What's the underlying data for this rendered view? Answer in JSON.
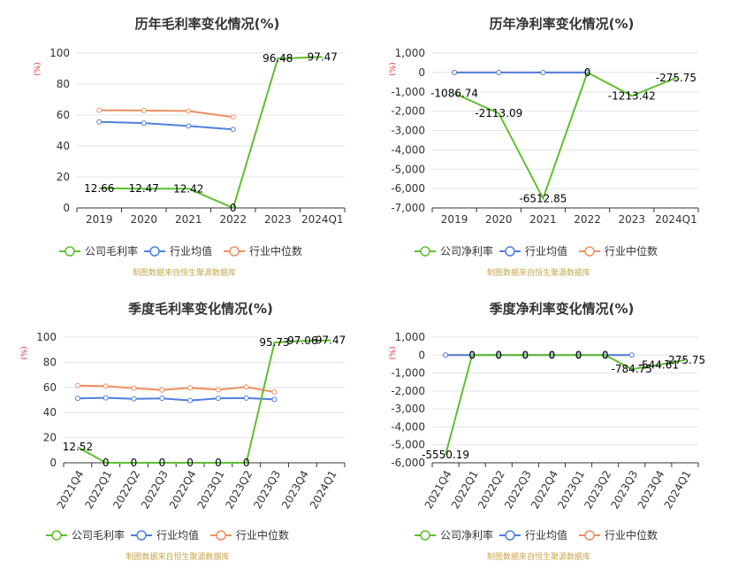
{
  "colors": {
    "company": "#5fbf2f",
    "industry_avg": "#4f7fe0",
    "industry_median": "#f08f60",
    "unit": "#e0303a",
    "source": "#c9a54a",
    "grid": "#e3e3e3"
  },
  "chart_data": [
    {
      "type": "line",
      "title": "历年毛利率变化情况(%)",
      "unit_label": "(%)",
      "categories": [
        "2019",
        "2020",
        "2021",
        "2022",
        "2023",
        "2024Q1"
      ],
      "ylim": [
        0,
        100
      ],
      "yticks": [
        "0",
        "20",
        "40",
        "60",
        "80",
        "100"
      ],
      "xtick_rotate": false,
      "series": [
        {
          "name": "公司毛利率",
          "key": "company",
          "values": [
            12.66,
            12.47,
            12.42,
            0,
            96.48,
            97.47
          ],
          "labels": [
            "12.66",
            "12.47",
            "12.42",
            "0",
            "96.48",
            "97.47"
          ]
        },
        {
          "name": "行业均值",
          "key": "industry_avg",
          "values": [
            55.6,
            54.8,
            52.9,
            50.7,
            null,
            null
          ]
        },
        {
          "name": "行业中位数",
          "key": "industry_median",
          "values": [
            63.1,
            62.9,
            62.6,
            58.7,
            null,
            null
          ]
        }
      ],
      "legend": [
        "公司毛利率",
        "行业均值",
        "行业中位数"
      ],
      "source": "制图数据来自恒生聚源数据库",
      "grid": true,
      "legend_position": "bottom"
    },
    {
      "type": "line",
      "title": "历年净利率变化情况(%)",
      "unit_label": "(%)",
      "categories": [
        "2019",
        "2020",
        "2021",
        "2022",
        "2023",
        "2024Q1"
      ],
      "ylim": [
        -7000,
        1000
      ],
      "yticks": [
        "-7,000",
        "-6,000",
        "-5,000",
        "-4,000",
        "-3,000",
        "-2,000",
        "-1,000",
        "0",
        "1,000"
      ],
      "xtick_rotate": false,
      "series": [
        {
          "name": "公司净利率",
          "key": "company",
          "values": [
            -1086.74,
            -2113.09,
            -6512.85,
            0,
            -1213.42,
            -275.75
          ],
          "labels": [
            "-1086.74",
            "-2113.09",
            "-6512.85",
            "0",
            "-1213.42",
            "-275.75"
          ]
        },
        {
          "name": "行业均值",
          "key": "industry_avg",
          "values": [
            0,
            0,
            0,
            0,
            null,
            null
          ]
        },
        {
          "name": "行业中位数",
          "key": "industry_median",
          "values": [
            0,
            0,
            0,
            0,
            null,
            null
          ]
        }
      ],
      "legend": [
        "公司净利率",
        "行业均值",
        "行业中位数"
      ],
      "source": "制图数据来自恒生聚源数据库",
      "grid": true,
      "legend_position": "bottom"
    },
    {
      "type": "line",
      "title": "季度毛利率变化情况(%)",
      "unit_label": "(%)",
      "categories": [
        "2021Q4",
        "2022Q1",
        "2022Q2",
        "2022Q3",
        "2022Q4",
        "2023Q1",
        "2023Q2",
        "2023Q3",
        "2023Q4",
        "2024Q1"
      ],
      "ylim": [
        0,
        100
      ],
      "yticks": [
        "0",
        "20",
        "40",
        "60",
        "80",
        "100"
      ],
      "xtick_rotate": true,
      "series": [
        {
          "name": "公司毛利率",
          "key": "company",
          "values": [
            12.52,
            0,
            0,
            0,
            0,
            0,
            0,
            95.73,
            97.06,
            97.47
          ],
          "labels": [
            "12.52",
            "0",
            "0",
            "0",
            "0",
            "0",
            "0",
            "95.73",
            "97.06",
            "97.47"
          ]
        },
        {
          "name": "行业均值",
          "key": "industry_avg",
          "values": [
            51.3,
            51.7,
            50.9,
            51.3,
            49.6,
            51.3,
            51.5,
            50.4,
            null,
            null
          ]
        },
        {
          "name": "行业中位数",
          "key": "industry_median",
          "values": [
            61.4,
            61.0,
            59.3,
            57.9,
            59.7,
            58.2,
            60.3,
            56.3,
            null,
            null
          ]
        }
      ],
      "legend": [
        "公司毛利率",
        "行业均值",
        "行业中位数"
      ],
      "source": "制图数据来自恒生聚源数据库",
      "grid": true,
      "legend_position": "bottom"
    },
    {
      "type": "line",
      "title": "季度净利率变化情况(%)",
      "unit_label": "(%)",
      "categories": [
        "2021Q4",
        "2022Q1",
        "2022Q2",
        "2022Q3",
        "2022Q4",
        "2023Q1",
        "2023Q2",
        "2023Q3",
        "2023Q4",
        "2024Q1"
      ],
      "ylim": [
        -6000,
        1000
      ],
      "yticks": [
        "-6,000",
        "-5,000",
        "-4,000",
        "-3,000",
        "-2,000",
        "-1,000",
        "0",
        "1,000"
      ],
      "xtick_rotate": true,
      "series": [
        {
          "name": "公司净利率",
          "key": "company",
          "values": [
            -5550.19,
            0,
            0,
            0,
            0,
            0,
            0,
            -784.75,
            -544.61,
            -275.75
          ],
          "labels": [
            "-5550.19",
            "0",
            "0",
            "0",
            "0",
            "0",
            "0",
            "-784.75",
            "-544.61",
            "-275.75"
          ]
        },
        {
          "name": "行业均值",
          "key": "industry_avg",
          "values": [
            0,
            0,
            0,
            0,
            0,
            0,
            0,
            0,
            null,
            null
          ]
        },
        {
          "name": "行业中位数",
          "key": "industry_median",
          "values": [
            0,
            0,
            0,
            0,
            0,
            0,
            0,
            0,
            null,
            null
          ]
        }
      ],
      "legend": [
        "公司净利率",
        "行业均值",
        "行业中位数"
      ],
      "source": "制图数据来自恒生聚源数据库",
      "grid": true,
      "legend_position": "bottom"
    }
  ]
}
